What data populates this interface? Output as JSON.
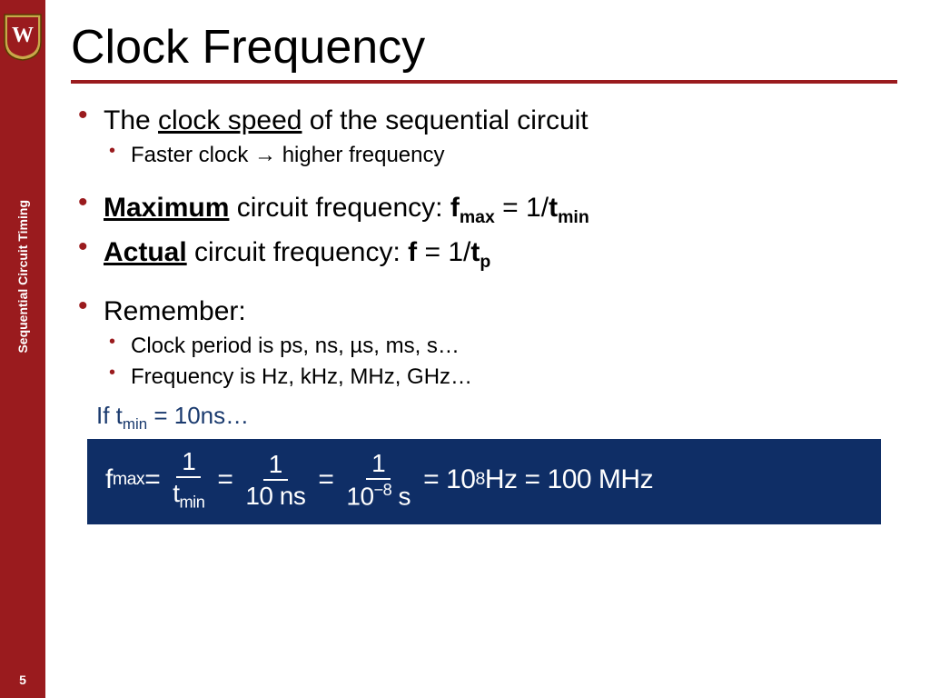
{
  "colors": {
    "sidebar_bg": "#9a1b1e",
    "equation_bg": "#0f2e66",
    "ifline_color": "#1a3a6e",
    "text_color": "#000000",
    "white": "#ffffff"
  },
  "typography": {
    "title_fontsize": 52,
    "bullet_fontsize": 30,
    "subbullet_fontsize": 24,
    "equation_fontsize": 30,
    "sidebar_fontsize": 14
  },
  "sidebar": {
    "title": "Sequential Circuit Timing",
    "page_number": "5",
    "crest_letter": "W"
  },
  "title": "Clock Frequency",
  "bullets": [
    {
      "prefix": "The ",
      "underlined": "clock speed",
      "suffix": " of the sequential circuit",
      "sub": [
        "Faster clock → higher frequency"
      ]
    },
    {
      "bold_underlined": "Maximum",
      "suffix_plain": " circuit frequency:  ",
      "formula_html": "<span class='b'>f<sub>max</sub></span> = 1/<span class='b'>t<sub>min</sub></span>"
    },
    {
      "bold_underlined": "Actual",
      "suffix_plain": " circuit frequency:  ",
      "formula_html": "<span class='b'>f</span> = 1/<span class='b'>t<sub>p</sub></span>"
    },
    {
      "plain": "Remember:",
      "sub": [
        "Clock period is ps, ns, µs, ms, s…",
        "Frequency is Hz, kHz, MHz, GHz…"
      ]
    }
  ],
  "ifline_html": "If t<sub>min</sub> = 10ns…",
  "equation": {
    "lhs_html": "f<sub>max</sub> =",
    "frac1": {
      "num": "1",
      "den_html": "t<sub>min</sub>"
    },
    "eq1": "=",
    "frac2": {
      "num": "1",
      "den_html": "10 ns"
    },
    "eq2": "=",
    "frac3": {
      "num": "1",
      "den_html": "10<sup>−8</sup> s"
    },
    "eq3": "=",
    "rhs1_html": "10<sup>8</sup> Hz",
    "eq4": "=",
    "rhs2": "100 MHz"
  }
}
